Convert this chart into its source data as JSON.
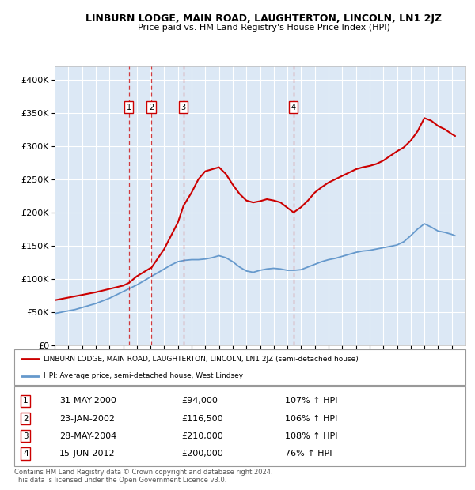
{
  "title": "LINBURN LODGE, MAIN ROAD, LAUGHTERTON, LINCOLN, LN1 2JZ",
  "subtitle": "Price paid vs. HM Land Registry's House Price Index (HPI)",
  "legend_line1": "LINBURN LODGE, MAIN ROAD, LAUGHTERTON, LINCOLN, LN1 2JZ (semi-detached house)",
  "legend_line2": "HPI: Average price, semi-detached house, West Lindsey",
  "footer": "Contains HM Land Registry data © Crown copyright and database right 2024.\nThis data is licensed under the Open Government Licence v3.0.",
  "transactions": [
    {
      "num": 1,
      "date": "31-MAY-2000",
      "price": 94000,
      "pct": "107%",
      "dir": "↑",
      "x": 2000.416
    },
    {
      "num": 2,
      "date": "23-JAN-2002",
      "price": 116500,
      "pct": "106%",
      "dir": "↑",
      "x": 2002.055
    },
    {
      "num": 3,
      "date": "28-MAY-2004",
      "price": 210000,
      "pct": "108%",
      "dir": "↑",
      "x": 2004.41
    },
    {
      "num": 4,
      "date": "15-JUN-2012",
      "price": 200000,
      "pct": "76%",
      "dir": "↑",
      "x": 2012.45
    }
  ],
  "hpi_color": "#6699cc",
  "price_color": "#cc0000",
  "background_color": "#dce8f5",
  "ylim": [
    0,
    420000
  ],
  "yticks": [
    0,
    50000,
    100000,
    150000,
    200000,
    250000,
    300000,
    350000,
    400000
  ],
  "ytick_labels": [
    "£0",
    "£50K",
    "£100K",
    "£150K",
    "£200K",
    "£250K",
    "£300K",
    "£350K",
    "£400K"
  ],
  "xlim": [
    1995,
    2025
  ],
  "hpi_data_x": [
    1995,
    1995.5,
    1996,
    1996.5,
    1997,
    1997.5,
    1998,
    1998.5,
    1999,
    1999.5,
    2000,
    2000.5,
    2001,
    2001.5,
    2002,
    2002.5,
    2003,
    2003.5,
    2004,
    2004.5,
    2005,
    2005.5,
    2006,
    2006.5,
    2007,
    2007.5,
    2008,
    2008.5,
    2009,
    2009.5,
    2010,
    2010.5,
    2011,
    2011.5,
    2012,
    2012.5,
    2013,
    2013.5,
    2014,
    2014.5,
    2015,
    2015.5,
    2016,
    2016.5,
    2017,
    2017.5,
    2018,
    2018.5,
    2019,
    2019.5,
    2020,
    2020.5,
    2021,
    2021.5,
    2022,
    2022.5,
    2023,
    2023.5,
    2024,
    2024.25
  ],
  "hpi_data_y": [
    48000,
    50000,
    52000,
    54000,
    57000,
    60000,
    63000,
    67000,
    71000,
    76000,
    81000,
    86000,
    91000,
    97000,
    103000,
    109000,
    115000,
    121000,
    126000,
    128000,
    129000,
    129000,
    130000,
    132000,
    135000,
    132000,
    126000,
    118000,
    112000,
    110000,
    113000,
    115000,
    116000,
    115000,
    113000,
    113000,
    114000,
    118000,
    122000,
    126000,
    129000,
    131000,
    134000,
    137000,
    140000,
    142000,
    143000,
    145000,
    147000,
    149000,
    151000,
    156000,
    165000,
    175000,
    183000,
    178000,
    172000,
    170000,
    167000,
    165000
  ],
  "price_data_x": [
    1995,
    1996,
    1997,
    1998,
    1999,
    2000,
    2000.416,
    2001,
    2002,
    2002.055,
    2003,
    2004,
    2004.41,
    2005,
    2005.5,
    2006,
    2006.5,
    2007,
    2007.5,
    2008,
    2008.5,
    2009,
    2009.5,
    2010,
    2010.5,
    2011,
    2011.5,
    2012,
    2012.45,
    2013,
    2013.5,
    2014,
    2014.5,
    2015,
    2015.5,
    2016,
    2016.5,
    2017,
    2017.5,
    2018,
    2018.5,
    2019,
    2019.5,
    2020,
    2020.5,
    2021,
    2021.5,
    2022,
    2022.5,
    2023,
    2023.5,
    2024,
    2024.25
  ],
  "price_data_y": [
    68000,
    72000,
    76000,
    80000,
    85000,
    90000,
    94000,
    104000,
    116500,
    116500,
    145000,
    185000,
    210000,
    230000,
    250000,
    262000,
    265000,
    268000,
    258000,
    242000,
    228000,
    218000,
    215000,
    217000,
    220000,
    218000,
    215000,
    207000,
    200000,
    208000,
    218000,
    230000,
    238000,
    245000,
    250000,
    255000,
    260000,
    265000,
    268000,
    270000,
    273000,
    278000,
    285000,
    292000,
    298000,
    308000,
    322000,
    342000,
    338000,
    330000,
    325000,
    318000,
    315000
  ]
}
